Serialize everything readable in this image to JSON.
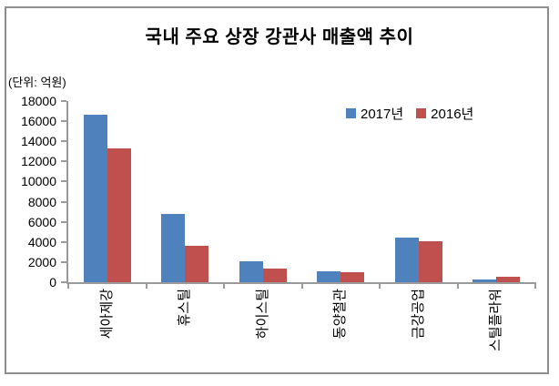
{
  "chart": {
    "title": "국내 주요 상장 강관사 매출액 추이",
    "unit_label": "(단위: 억원)"
  },
  "chart_data": {
    "type": "bar",
    "title": "국내 주요 상장 강관사 매출액 추이",
    "unit_label": "(단위: 억원)",
    "categories": [
      "세아제강",
      "휴스틸",
      "하이스틸",
      "동양철관",
      "금강공업",
      "스틸플라워"
    ],
    "series": [
      {
        "name": "2017년",
        "color": "#4F81BD",
        "values": [
          16600,
          6800,
          2100,
          1100,
          4400,
          250
        ]
      },
      {
        "name": "2016년",
        "color": "#C0504D",
        "values": [
          13300,
          3600,
          1400,
          1000,
          4100,
          550
        ]
      }
    ],
    "ylim": [
      0,
      18000
    ],
    "ytick_step": 2000,
    "yticks": [
      0,
      2000,
      4000,
      6000,
      8000,
      10000,
      12000,
      14000,
      16000,
      18000
    ],
    "grid": false,
    "legend_position": "inside-top-right",
    "axis_color": "#9A9A9A",
    "frame_color": "#8E8E8E"
  }
}
